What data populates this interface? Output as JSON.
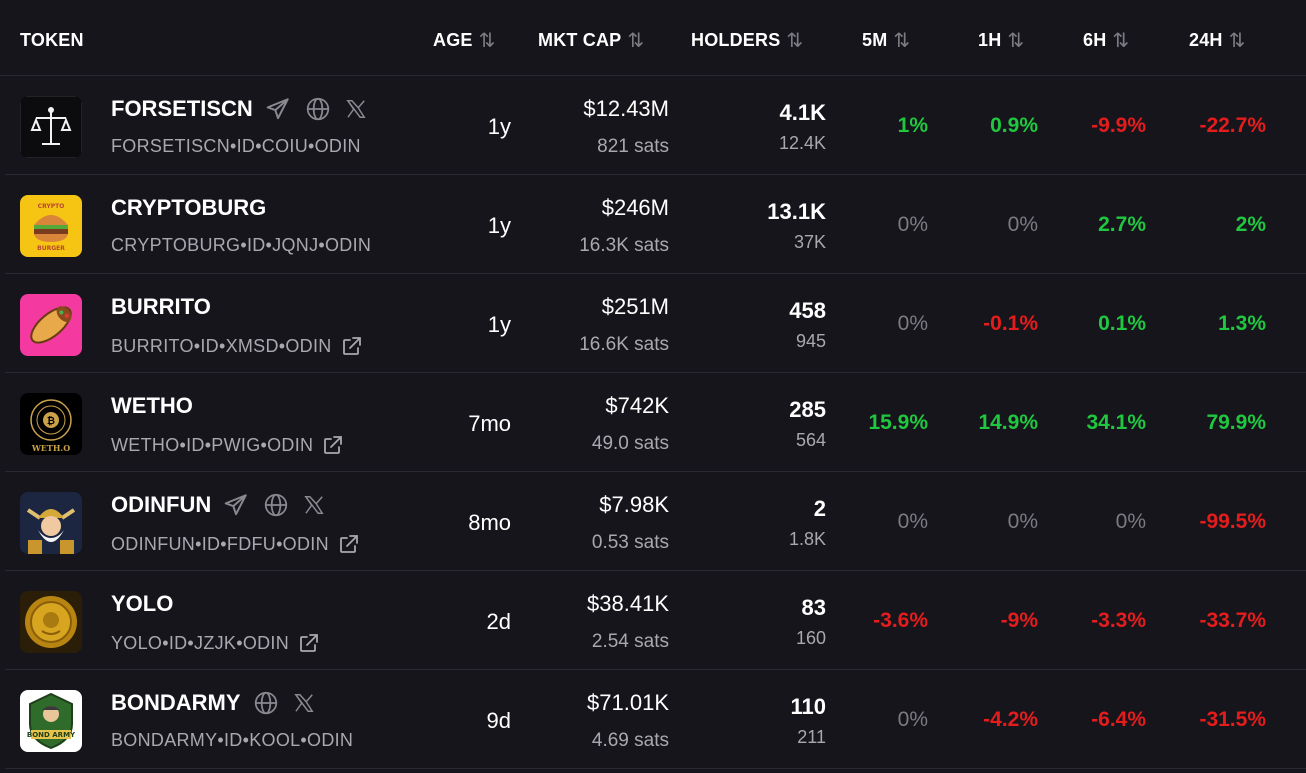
{
  "header": {
    "token": "TOKEN",
    "age": "AGE",
    "mkt_cap": "MKT CAP",
    "holders": "HOLDERS",
    "m5": "5M",
    "h1": "1H",
    "h6": "6H",
    "h24": "24H",
    "sort_glyph": "⇅"
  },
  "colors": {
    "positive": "#1fc83f",
    "negative": "#e51c1c",
    "neutral": "#7c7b82",
    "background": "#16151c"
  },
  "rows": [
    {
      "name": "FORSETISCN",
      "ticker": "FORSETISCN•ID•COIU•ODIN",
      "age": "1y",
      "mkt_cap": "$12.43M",
      "sats": "821 sats",
      "holders": "4.1K",
      "holders_sub": "12.4K",
      "m5": "1%",
      "h1": "0.9%",
      "h6": "-9.9%",
      "h24": "-22.7%",
      "icons": [
        "telegram-icon",
        "globe-icon",
        "x-icon"
      ],
      "logo": "scales-of-justice"
    },
    {
      "name": "CRYPTOBURG",
      "ticker": "CRYPTOBURG•ID•JQNJ•ODIN",
      "age": "1y",
      "mkt_cap": "$246M",
      "sats": "16.3K sats",
      "holders": "13.1K",
      "holders_sub": "37K",
      "m5": "0%",
      "h1": "0%",
      "h6": "2.7%",
      "h24": "2%",
      "icons": [],
      "logo": "burger"
    },
    {
      "name": "BURRITO",
      "ticker": "BURRITO•ID•XMSD•ODIN",
      "age": "1y",
      "mkt_cap": "$251M",
      "sats": "16.6K sats",
      "holders": "458",
      "holders_sub": "945",
      "m5": "0%",
      "h1": "-0.1%",
      "h6": "0.1%",
      "h24": "1.3%",
      "icons": [],
      "logo": "burrito"
    },
    {
      "name": "WETHO",
      "ticker": "WETHO•ID•PWIG•ODIN",
      "age": "7mo",
      "mkt_cap": "$742K",
      "sats": "49.0 sats",
      "holders": "285",
      "holders_sub": "564",
      "m5": "15.9%",
      "h1": "14.9%",
      "h6": "34.1%",
      "h24": "79.9%",
      "icons": [],
      "logo": "bitcoin-coin",
      "logo_text": "WETH.O"
    },
    {
      "name": "ODINFUN",
      "ticker": "ODINFUN•ID•FDFU•ODIN",
      "age": "8mo",
      "mkt_cap": "$7.98K",
      "sats": "0.53 sats",
      "holders": "2",
      "holders_sub": "1.8K",
      "m5": "0%",
      "h1": "0%",
      "h6": "0%",
      "h24": "-99.5%",
      "icons": [
        "telegram-icon",
        "globe-icon",
        "x-icon"
      ],
      "logo": "viking"
    },
    {
      "name": "YOLO",
      "ticker": "YOLO•ID•JZJK•ODIN",
      "age": "2d",
      "mkt_cap": "$38.41K",
      "sats": "2.54 sats",
      "holders": "83",
      "holders_sub": "160",
      "m5": "-3.6%",
      "h1": "-9%",
      "h6": "-3.3%",
      "h24": "-33.7%",
      "icons": [],
      "logo": "gold-coin"
    },
    {
      "name": "BONDARMY",
      "ticker": "BONDARMY•ID•KOOL•ODIN",
      "age": "9d",
      "mkt_cap": "$71.01K",
      "sats": "4.69 sats",
      "holders": "110",
      "holders_sub": "211",
      "m5": "0%",
      "h1": "-4.2%",
      "h6": "-6.4%",
      "h24": "-31.5%",
      "icons": [
        "globe-icon",
        "x-icon"
      ],
      "logo": "army-badge",
      "logo_text": "BOND ARMY"
    }
  ]
}
